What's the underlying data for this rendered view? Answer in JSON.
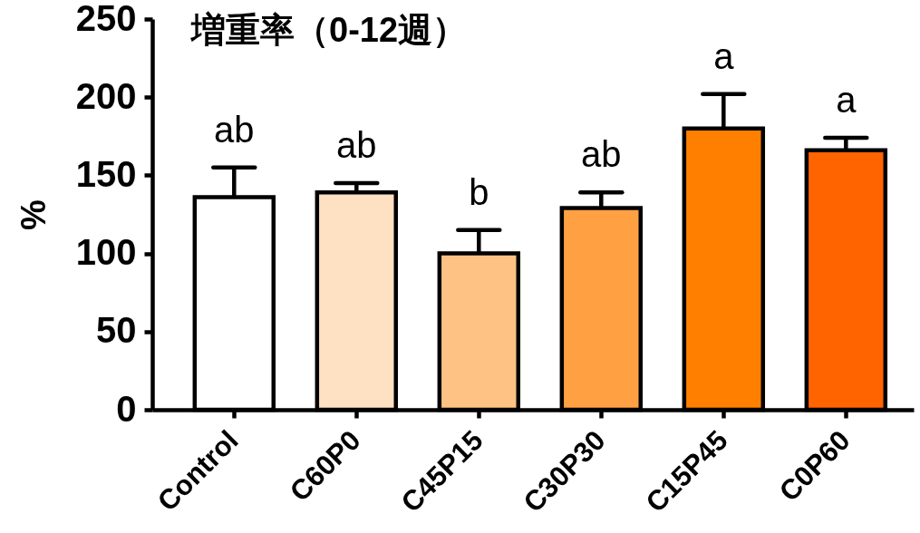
{
  "chart_data": {
    "type": "bar",
    "title": "増重率（0-12週）",
    "ylabel": "%",
    "categories": [
      "Control",
      "C60P0",
      "C45P15",
      "C30P30",
      "C15P45",
      "C0P60"
    ],
    "values": [
      136,
      139,
      100,
      129,
      180,
      166
    ],
    "colors": [
      "#ffffff",
      "#fee0c2",
      "#ffc285",
      "#ffa142",
      "#ff8000",
      "#ff6400"
    ],
    "errors": [
      [
        136,
        155
      ],
      [
        139,
        145
      ],
      [
        100,
        115
      ],
      [
        129,
        139
      ],
      [
        180,
        202
      ],
      [
        166,
        174
      ]
    ],
    "ylim": [
      0,
      250
    ],
    "yticks": [
      0,
      50,
      100,
      150,
      200,
      250
    ],
    "annotations": [
      "ab",
      "ab",
      "b",
      "ab",
      "a",
      "a"
    ]
  }
}
